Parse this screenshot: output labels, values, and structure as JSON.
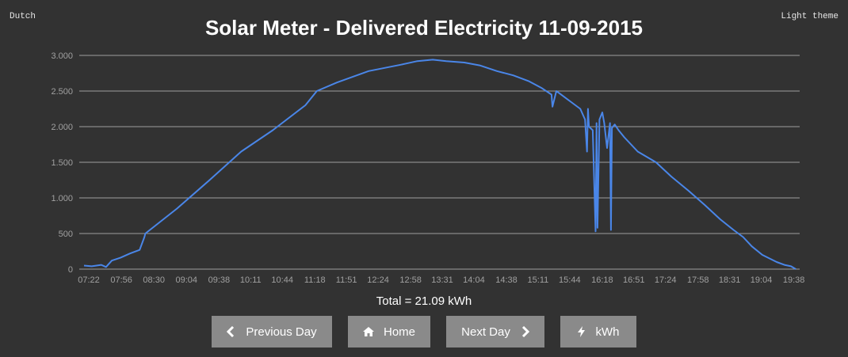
{
  "header": {
    "language_link": "Dutch",
    "theme_link": "Light theme",
    "title": "Solar Meter - Delivered Electricity 11-09-2015"
  },
  "summary": {
    "total": "Total = 21.09 kWh"
  },
  "nav": {
    "prev_label": "Previous Day",
    "home_label": "Home",
    "next_label": "Next Day",
    "unit_label": "kWh"
  },
  "colors": {
    "background": "#323232",
    "line": "#4a86e8",
    "gridline": "#9e9e9e",
    "axis_text": "#a0a0a0",
    "button": "#8a8a8a"
  },
  "icons": {
    "prev": "chevron-left-icon",
    "home": "home-icon",
    "next": "chevron-right-icon",
    "unit": "bolt-icon"
  },
  "chart_data": {
    "type": "line",
    "title": "Solar Meter - Delivered Electricity 11-09-2015",
    "xlabel": "",
    "ylabel": "",
    "ylim": [
      0,
      3000
    ],
    "y_ticks": [
      0,
      500,
      1000,
      1500,
      2000,
      2500,
      3000
    ],
    "y_tick_labels": [
      "0",
      "500",
      "1.000",
      "1.500",
      "2.000",
      "2.500",
      "3.000"
    ],
    "x_tick_labels": [
      "07:22",
      "07:56",
      "08:30",
      "09:04",
      "09:38",
      "10:11",
      "10:44",
      "11:18",
      "11:51",
      "12:24",
      "12:58",
      "13:31",
      "14:04",
      "14:38",
      "15:11",
      "15:44",
      "16:18",
      "16:51",
      "17:24",
      "17:58",
      "18:31",
      "19:04",
      "19:38"
    ],
    "xlim": [
      "07:22",
      "19:54"
    ],
    "grid": true,
    "legend": "none",
    "series": [
      {
        "x": [
          "07:27",
          "07:35",
          "07:45",
          "07:50",
          "07:56",
          "08:05",
          "08:15",
          "08:25",
          "08:30",
          "08:31",
          "09:04",
          "09:38",
          "10:11",
          "10:44",
          "11:18",
          "11:30",
          "11:51",
          "12:24",
          "12:58",
          "13:15",
          "13:31",
          "13:45",
          "14:04",
          "14:20",
          "14:38",
          "14:55",
          "15:11",
          "15:25",
          "15:35",
          "15:36",
          "15:40",
          "15:44",
          "15:55",
          "16:05",
          "16:10",
          "16:12",
          "16:13",
          "16:14",
          "16:18",
          "16:21",
          "16:22",
          "16:23",
          "16:25",
          "16:28",
          "16:30",
          "16:33",
          "16:36",
          "16:37",
          "16:38",
          "16:41",
          "16:45",
          "16:51",
          "17:05",
          "17:24",
          "17:40",
          "17:58",
          "18:15",
          "18:31",
          "18:45",
          "18:55",
          "19:04",
          "19:15",
          "19:30",
          "19:38",
          "19:45",
          "19:50"
        ],
        "y": [
          50,
          40,
          60,
          30,
          120,
          160,
          220,
          270,
          450,
          500,
          850,
          1250,
          1650,
          1950,
          2300,
          2500,
          2620,
          2780,
          2870,
          2920,
          2940,
          2920,
          2900,
          2860,
          2780,
          2720,
          2640,
          2540,
          2450,
          2280,
          2500,
          2460,
          2350,
          2250,
          2100,
          1650,
          2250,
          2000,
          1950,
          530,
          2050,
          580,
          2100,
          2200,
          2050,
          1700,
          2050,
          550,
          1980,
          2030,
          1950,
          1850,
          1650,
          1500,
          1300,
          1100,
          900,
          700,
          550,
          450,
          320,
          200,
          100,
          60,
          40,
          0
        ]
      }
    ]
  }
}
